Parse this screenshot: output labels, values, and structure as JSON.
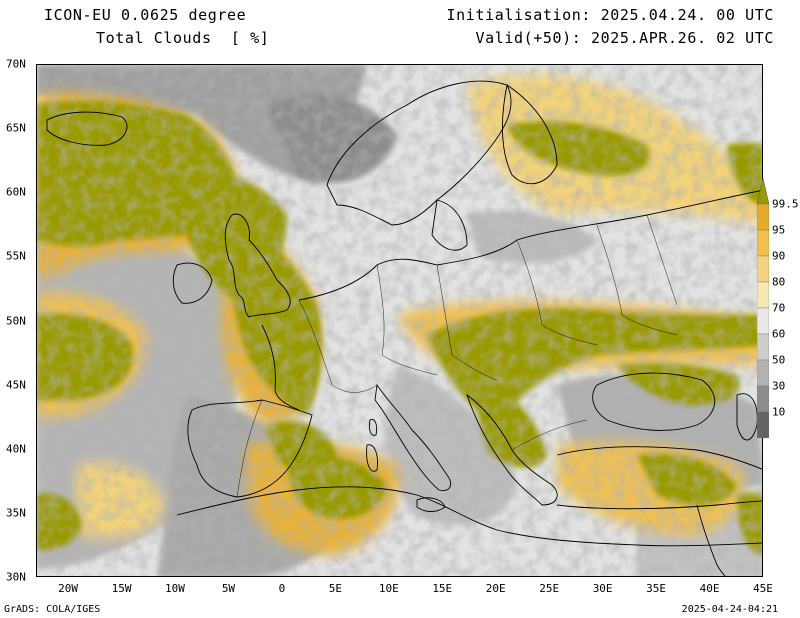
{
  "header": {
    "model": "ICON-EU 0.0625 degree",
    "parameter": "Total Clouds  [ %]",
    "initialisation": "Initialisation: 2025.04.24. 00 UTC",
    "valid": "Valid(+50): 2025.APR.26. 02 UTC"
  },
  "map": {
    "lon_range": [
      -23,
      45
    ],
    "lat_range": [
      30,
      70
    ],
    "lat_labels": [
      "70N",
      "65N",
      "60N",
      "55N",
      "50N",
      "45N",
      "40N",
      "35N",
      "30N"
    ],
    "lon_labels": [
      "20W",
      "15W",
      "10W",
      "5W",
      "0",
      "5E",
      "10E",
      "15E",
      "20E",
      "25E",
      "30E",
      "35E",
      "40E",
      "45E"
    ]
  },
  "legend": {
    "labels": [
      "99.5",
      "95",
      "90",
      "80",
      "70",
      "60",
      "50",
      "30",
      "10"
    ],
    "colors": [
      "#e3aa2c",
      "#efc04e",
      "#f3d37f",
      "#f3e9b4",
      "#e8e8e8",
      "#cdcdcd",
      "#b2b2b2",
      "#8c8c8c",
      "#646464"
    ],
    "top_color": "#999900"
  },
  "footer": {
    "left": "GrADS: COLA/IGES",
    "right": "2025-04-24-04:21"
  }
}
